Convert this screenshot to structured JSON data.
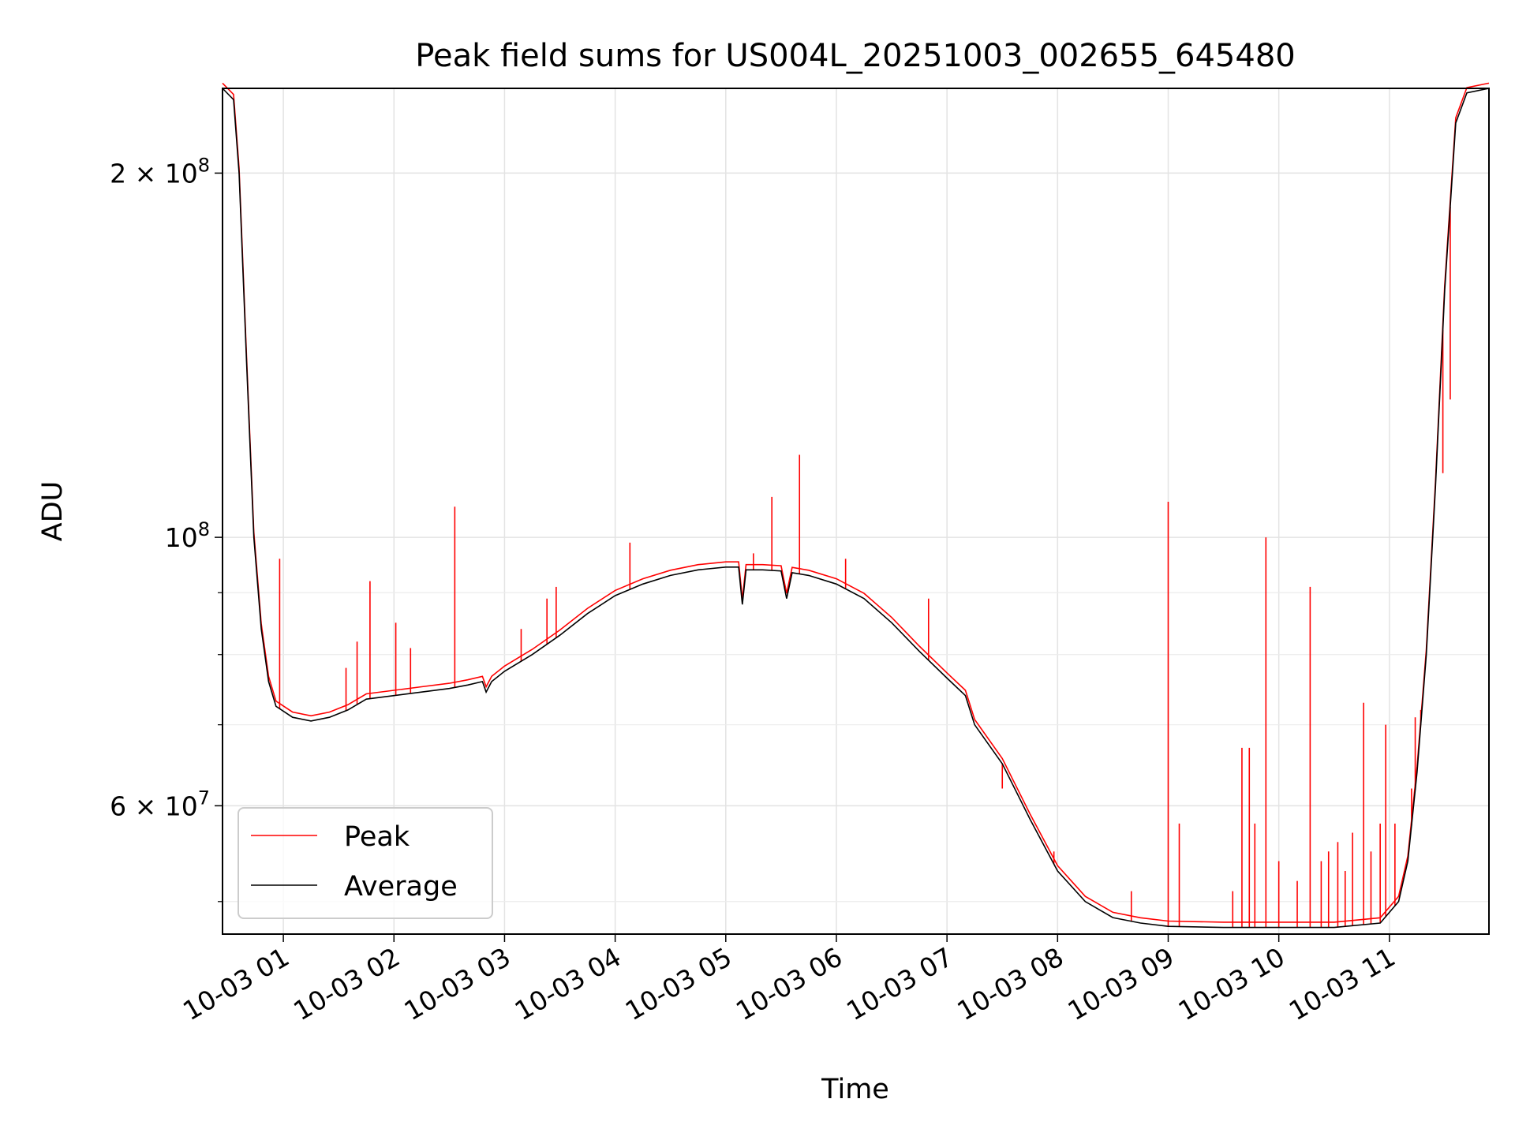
{
  "chart_data": {
    "type": "line",
    "title": "Peak field sums for US004L_20251003_002655_645480",
    "xlabel": "Time",
    "ylabel": "ADU",
    "yscale": "log",
    "grid": true,
    "legend_position": "lower-left",
    "xlim": [
      "2025-10-03 00:27",
      "2025-10-03 11:54"
    ],
    "ylim": [
      47000000,
      235000000
    ],
    "x_ticks": [
      {
        "value": "2025-10-03 01:00",
        "label": "10-03 01"
      },
      {
        "value": "2025-10-03 02:00",
        "label": "10-03 02"
      },
      {
        "value": "2025-10-03 03:00",
        "label": "10-03 03"
      },
      {
        "value": "2025-10-03 04:00",
        "label": "10-03 04"
      },
      {
        "value": "2025-10-03 05:00",
        "label": "10-03 05"
      },
      {
        "value": "2025-10-03 06:00",
        "label": "10-03 06"
      },
      {
        "value": "2025-10-03 07:00",
        "label": "10-03 07"
      },
      {
        "value": "2025-10-03 08:00",
        "label": "10-03 08"
      },
      {
        "value": "2025-10-03 09:00",
        "label": "10-03 09"
      },
      {
        "value": "2025-10-03 10:00",
        "label": "10-03 10"
      },
      {
        "value": "2025-10-03 11:00",
        "label": "10-03 11"
      }
    ],
    "y_major_ticks": [
      {
        "value": 60000000,
        "mantissa": "6",
        "exponent": "7"
      },
      {
        "value": 100000000,
        "mantissa": "",
        "exponent": "8"
      },
      {
        "value": 200000000,
        "mantissa": "2",
        "exponent": "8"
      }
    ],
    "y_minor_ticks": [
      50000000,
      70000000,
      80000000,
      90000000
    ],
    "mantissa_sep": "×",
    "base": "10",
    "series": [
      {
        "name": "Average",
        "color": "#000000",
        "points": [
          [
            "2025-10-03 00:27",
            235000000
          ],
          [
            "2025-10-03 00:33",
            230000000
          ],
          [
            "2025-10-03 00:36",
            200000000
          ],
          [
            "2025-10-03 00:40",
            140000000
          ],
          [
            "2025-10-03 00:44",
            100000000
          ],
          [
            "2025-10-03 00:48",
            84000000
          ],
          [
            "2025-10-03 00:52",
            76000000
          ],
          [
            "2025-10-03 00:56",
            72500000
          ],
          [
            "2025-10-03 01:05",
            71000000
          ],
          [
            "2025-10-03 01:15",
            70500000
          ],
          [
            "2025-10-03 01:25",
            71000000
          ],
          [
            "2025-10-03 01:35",
            72000000
          ],
          [
            "2025-10-03 01:45",
            73500000
          ],
          [
            "2025-10-03 02:00",
            74000000
          ],
          [
            "2025-10-03 02:15",
            74500000
          ],
          [
            "2025-10-03 02:30",
            75000000
          ],
          [
            "2025-10-03 02:40",
            75500000
          ],
          [
            "2025-10-03 02:48",
            76000000
          ],
          [
            "2025-10-03 02:50",
            74500000
          ],
          [
            "2025-10-03 02:53",
            76000000
          ],
          [
            "2025-10-03 03:00",
            77500000
          ],
          [
            "2025-10-03 03:15",
            80000000
          ],
          [
            "2025-10-03 03:30",
            83000000
          ],
          [
            "2025-10-03 03:45",
            86500000
          ],
          [
            "2025-10-03 04:00",
            89500000
          ],
          [
            "2025-10-03 04:15",
            91500000
          ],
          [
            "2025-10-03 04:30",
            93000000
          ],
          [
            "2025-10-03 04:45",
            94000000
          ],
          [
            "2025-10-03 05:00",
            94500000
          ],
          [
            "2025-10-03 05:07",
            94500000
          ],
          [
            "2025-10-03 05:09",
            88000000
          ],
          [
            "2025-10-03 05:11",
            94000000
          ],
          [
            "2025-10-03 05:20",
            94000000
          ],
          [
            "2025-10-03 05:30",
            93800000
          ],
          [
            "2025-10-03 05:33",
            89000000
          ],
          [
            "2025-10-03 05:36",
            93500000
          ],
          [
            "2025-10-03 05:45",
            93000000
          ],
          [
            "2025-10-03 06:00",
            91500000
          ],
          [
            "2025-10-03 06:15",
            89000000
          ],
          [
            "2025-10-03 06:30",
            85000000
          ],
          [
            "2025-10-03 06:45",
            80500000
          ],
          [
            "2025-10-03 07:00",
            76500000
          ],
          [
            "2025-10-03 07:10",
            74000000
          ],
          [
            "2025-10-03 07:15",
            70000000
          ],
          [
            "2025-10-03 07:30",
            65000000
          ],
          [
            "2025-10-03 07:45",
            58500000
          ],
          [
            "2025-10-03 08:00",
            53000000
          ],
          [
            "2025-10-03 08:15",
            50000000
          ],
          [
            "2025-10-03 08:30",
            48500000
          ],
          [
            "2025-10-03 08:45",
            48000000
          ],
          [
            "2025-10-03 09:00",
            47700000
          ],
          [
            "2025-10-03 09:30",
            47600000
          ],
          [
            "2025-10-03 10:00",
            47600000
          ],
          [
            "2025-10-03 10:30",
            47600000
          ],
          [
            "2025-10-03 10:55",
            48000000
          ],
          [
            "2025-10-03 11:05",
            50000000
          ],
          [
            "2025-10-03 11:10",
            54000000
          ],
          [
            "2025-10-03 11:15",
            64000000
          ],
          [
            "2025-10-03 11:20",
            80000000
          ],
          [
            "2025-10-03 11:25",
            110000000
          ],
          [
            "2025-10-03 11:30",
            160000000
          ],
          [
            "2025-10-03 11:36",
            220000000
          ],
          [
            "2025-10-03 11:42",
            233000000
          ],
          [
            "2025-10-03 11:54",
            235000000
          ]
        ]
      },
      {
        "name": "Peak",
        "color": "#ff0000",
        "offset_above_average": 0.01,
        "spikes": [
          [
            "2025-10-03 00:58",
            96000000
          ],
          [
            "2025-10-03 01:34",
            78000000
          ],
          [
            "2025-10-03 01:40",
            82000000
          ],
          [
            "2025-10-03 01:47",
            92000000
          ],
          [
            "2025-10-03 02:01",
            85000000
          ],
          [
            "2025-10-03 02:09",
            81000000
          ],
          [
            "2025-10-03 02:33",
            106000000
          ],
          [
            "2025-10-03 03:09",
            84000000
          ],
          [
            "2025-10-03 03:23",
            89000000
          ],
          [
            "2025-10-03 03:28",
            91000000
          ],
          [
            "2025-10-03 04:08",
            99000000
          ],
          [
            "2025-10-03 05:15",
            97000000
          ],
          [
            "2025-10-03 05:25",
            108000000
          ],
          [
            "2025-10-03 05:40",
            117000000
          ],
          [
            "2025-10-03 06:05",
            96000000
          ],
          [
            "2025-10-03 06:50",
            89000000
          ],
          [
            "2025-10-03 07:30",
            62000000
          ],
          [
            "2025-10-03 07:58",
            55000000
          ],
          [
            "2025-10-03 08:40",
            51000000
          ],
          [
            "2025-10-03 09:00",
            107000000
          ],
          [
            "2025-10-03 09:06",
            58000000
          ],
          [
            "2025-10-03 09:35",
            51000000
          ],
          [
            "2025-10-03 09:40",
            67000000
          ],
          [
            "2025-10-03 09:44",
            67000000
          ],
          [
            "2025-10-03 09:47",
            58000000
          ],
          [
            "2025-10-03 09:53",
            100000000
          ],
          [
            "2025-10-03 10:00",
            54000000
          ],
          [
            "2025-10-03 10:10",
            52000000
          ],
          [
            "2025-10-03 10:17",
            91000000
          ],
          [
            "2025-10-03 10:23",
            54000000
          ],
          [
            "2025-10-03 10:27",
            55000000
          ],
          [
            "2025-10-03 10:32",
            56000000
          ],
          [
            "2025-10-03 10:36",
            53000000
          ],
          [
            "2025-10-03 10:40",
            57000000
          ],
          [
            "2025-10-03 10:46",
            73000000
          ],
          [
            "2025-10-03 10:50",
            55000000
          ],
          [
            "2025-10-03 10:55",
            58000000
          ],
          [
            "2025-10-03 10:58",
            70000000
          ],
          [
            "2025-10-03 11:03",
            58000000
          ],
          [
            "2025-10-03 11:12",
            62000000
          ],
          [
            "2025-10-03 11:14",
            71000000
          ],
          [
            "2025-10-03 11:17",
            72000000
          ],
          [
            "2025-10-03 11:29",
            113000000
          ],
          [
            "2025-10-03 11:33",
            130000000
          ]
        ]
      }
    ]
  }
}
